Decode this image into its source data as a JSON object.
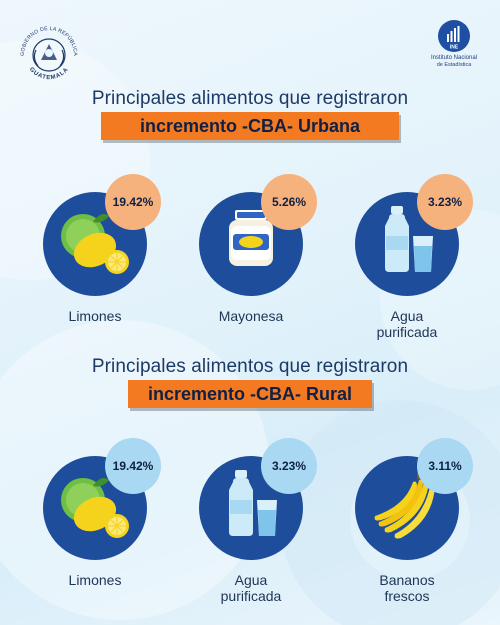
{
  "header": {
    "seal_text_top": "GOBIERNO DE LA REPÚBLICA",
    "seal_text_bottom": "GUATEMALA",
    "ine_short": "INE",
    "ine_name_line1": "Instituto Nacional",
    "ine_name_line2": "de Estadística"
  },
  "urban": {
    "title": "Principales alimentos que registraron",
    "banner": "incremento -CBA- Urbana",
    "items": [
      {
        "label": "Limones",
        "percent": "19.42%",
        "icon": "lemon-icon"
      },
      {
        "label": "Mayonesa",
        "percent": "5.26%",
        "icon": "mayonnaise-jar-icon"
      },
      {
        "label_line1": "Agua",
        "label_line2": "purificada",
        "percent": "3.23%",
        "icon": "water-bottle-icon"
      }
    ]
  },
  "rural": {
    "title": "Principales alimentos que registraron",
    "banner": "incremento -CBA- Rural",
    "items": [
      {
        "label": "Limones",
        "percent": "19.42%",
        "icon": "lemon-icon"
      },
      {
        "label_line1": "Agua",
        "label_line2": "purificada",
        "percent": "3.23%",
        "icon": "water-bottle-icon"
      },
      {
        "label_line1": "Bananos",
        "label_line2": "frescos",
        "percent": "3.11%",
        "icon": "banana-icon"
      }
    ]
  },
  "colors": {
    "navy_circle": "#1e4d9b",
    "orange_banner": "#f47a21",
    "urban_badge": "#f6b27c",
    "rural_badge": "#a9d8f2"
  }
}
